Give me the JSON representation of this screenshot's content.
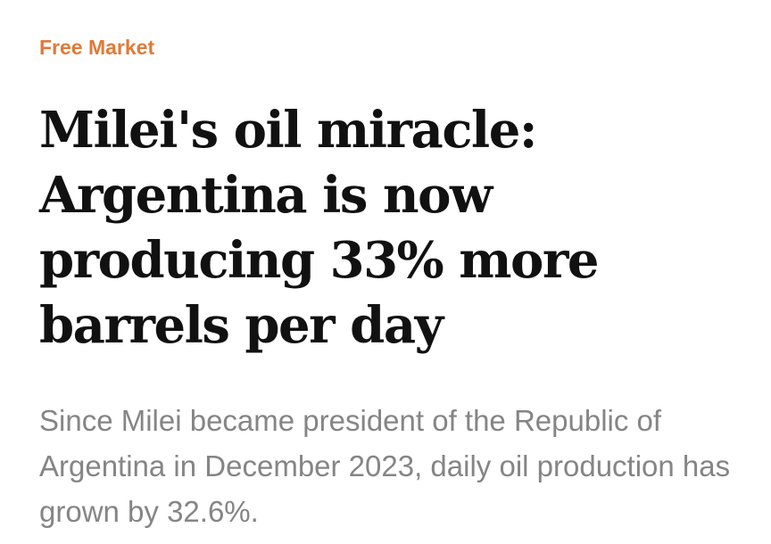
{
  "article": {
    "category": "Free Market",
    "headline": "Milei's oil miracle: Argentina is now producing 33% more barrels per day",
    "summary": "Since Milei became president of the Republic of Argentina in December 2023, daily oil production has grown by 32.6%."
  },
  "colors": {
    "category": "#e07a38",
    "headline": "#111111",
    "summary": "#858585",
    "background": "#ffffff"
  }
}
